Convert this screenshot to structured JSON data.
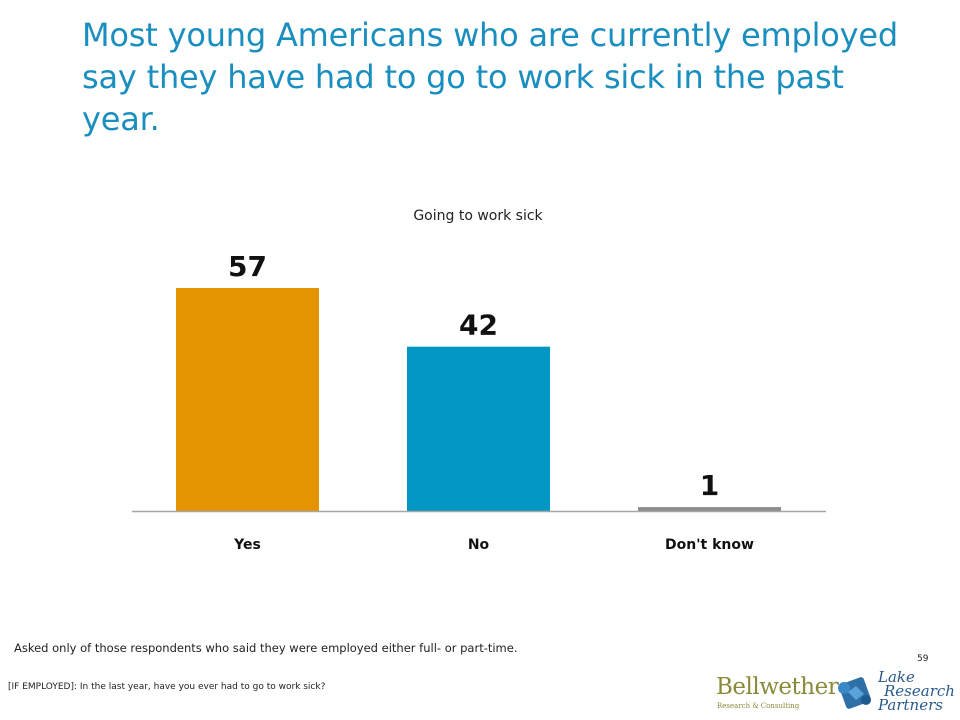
{
  "slide": {
    "title": "Most young Americans who are currently employed say they have had to go to work sick in the past year.",
    "footnote": "Asked only of those respondents who said they were employed either full- or part-time.",
    "question": "[IF EMPLOYED]: In the last year, have you ever had to go to work sick?",
    "page_number": "59"
  },
  "logos": {
    "bellwether": {
      "name": "Bellwether",
      "tagline": "Research & Consulting"
    },
    "lake": {
      "line1": "Lake",
      "line2": "Research",
      "line3": "Partners",
      "icon": "puzzle-piece-icon"
    }
  },
  "chart_data": {
    "type": "bar",
    "title": "Going to work sick",
    "categories": [
      "Yes",
      "No",
      "Don't know"
    ],
    "values": [
      57,
      42,
      1
    ],
    "colors": [
      "#e39400",
      "#0097c4",
      "#8c8c8c"
    ],
    "ylim": [
      0,
      60
    ],
    "grid": false,
    "legend": "none"
  }
}
